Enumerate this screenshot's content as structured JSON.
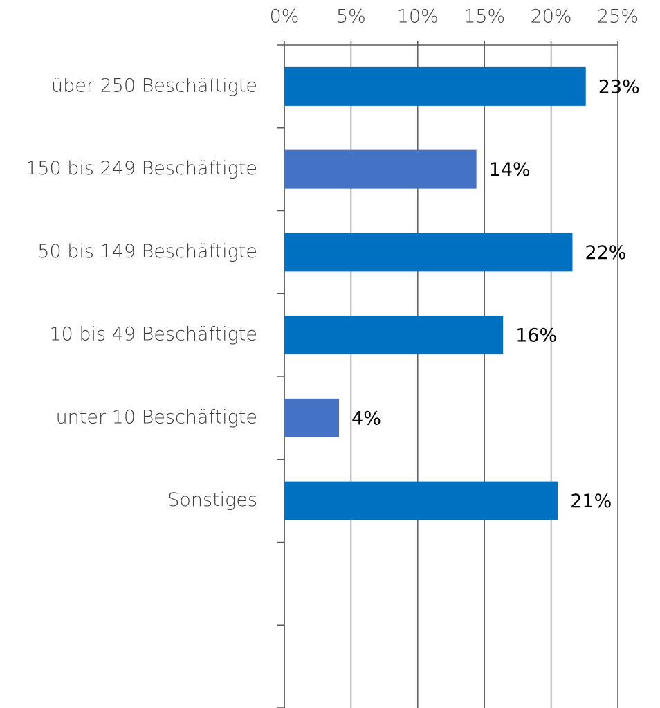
{
  "chart_data": {
    "type": "bar",
    "orientation": "horizontal",
    "categories": [
      "über 250 Beschäftigte",
      "150 bis 249 Beschäftigte",
      "50 bis 149 Beschäftigte",
      "10 bis 49 Beschäftigte",
      "unter 10 Beschäftigte",
      "Sonstiges",
      null,
      null
    ],
    "values": [
      22.6,
      14.4,
      21.6,
      16.4,
      4.1,
      20.5,
      null,
      null
    ],
    "value_labels": [
      "23%",
      "14%",
      "22%",
      "16%",
      "4%",
      "21%",
      null,
      null
    ],
    "colors": [
      "#0070c0",
      "#4472c4",
      "#0070c0",
      "#0070c0",
      "#4472c4",
      "#0070c0",
      null,
      null
    ],
    "xlim": [
      0,
      25
    ],
    "xticks": [
      {
        "value": 0,
        "label": "0%"
      },
      {
        "value": 5,
        "label": "5%"
      },
      {
        "value": 10,
        "label": "10%"
      },
      {
        "value": 15,
        "label": "15%"
      },
      {
        "value": 20,
        "label": "20%"
      },
      {
        "value": 25,
        "label": "25%"
      }
    ],
    "grid": true
  }
}
